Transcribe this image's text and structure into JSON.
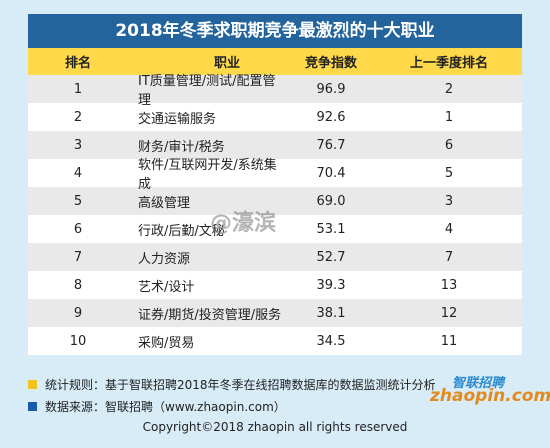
{
  "title": "2018年冬季求职期竞争最激烈的十大职业",
  "headers": [
    "排名",
    "职业",
    "竞争指数",
    "上一季度排名"
  ],
  "rows": [
    [
      "1",
      "IT质量管理/测试/配置管理",
      "96.9",
      "2"
    ],
    [
      "2",
      "交通运输服务",
      "92.6",
      "1"
    ],
    [
      "3",
      "财务/审计/税务",
      "76.7",
      "6"
    ],
    [
      "4",
      "软件/互联网开发/系统集成",
      "70.4",
      "5"
    ],
    [
      "5",
      "高级管理",
      "69.0",
      "3"
    ],
    [
      "6",
      "行政/后勤/文秘",
      "53.1",
      "4"
    ],
    [
      "7",
      "人力资源",
      "52.7",
      "7"
    ],
    [
      "8",
      "艺术/设计",
      "39.3",
      "13"
    ],
    [
      "9",
      "证券/期货/投资管理/服务",
      "38.1",
      "12"
    ],
    [
      "10",
      "采购/贸易",
      "34.5",
      "11"
    ]
  ],
  "notes": {
    "rule": "统计规则：基于智联招聘2018年冬季在线招聘数据库的数据监测统计分析",
    "source": "数据来源：智联招聘（www.zhaopin.com）"
  },
  "colors": {
    "title_bg": "#23649d",
    "header_bg": "#ffd94a",
    "rule_square": "#f2c31a",
    "source_square": "#1a5aa8"
  },
  "logo": {
    "cn": "智联招聘",
    "en": "zhaopin.com"
  },
  "watermark": "@濠滨",
  "copyright": "Copyright©2018 zhaopin all rights reserved"
}
